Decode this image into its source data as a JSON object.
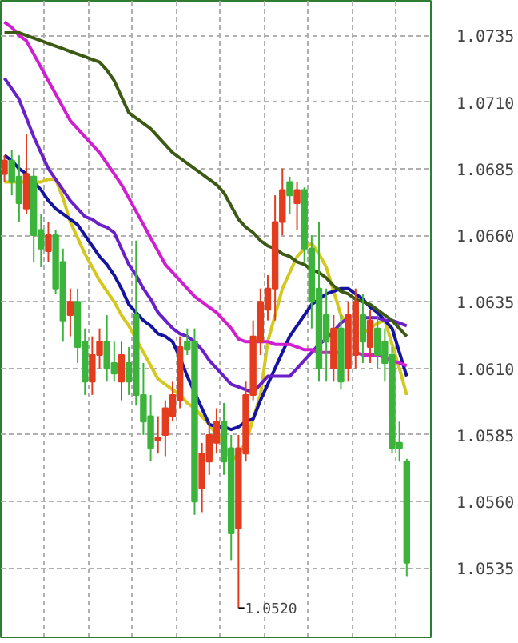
{
  "chart_data": {
    "type": "candlestick",
    "categories": [
      null,
      null,
      null,
      null,
      null,
      null,
      null,
      null,
      null,
      null,
      null,
      null,
      null,
      null,
      null,
      null,
      null,
      null,
      null,
      null,
      null,
      null,
      null,
      null,
      null,
      null,
      null,
      null,
      null,
      null,
      null,
      null,
      null,
      null,
      null,
      null,
      null,
      null,
      null,
      null,
      null,
      null,
      null,
      null,
      null,
      null,
      null,
      null,
      null,
      null,
      null,
      null,
      null,
      null,
      null,
      null
    ],
    "ohlc": [
      [
        1.0683,
        1.069,
        1.068,
        1.0688
      ],
      [
        1.0688,
        1.0692,
        1.0675,
        1.068
      ],
      [
        1.0682,
        1.069,
        1.0665,
        1.0672
      ],
      [
        1.067,
        1.0698,
        1.0668,
        1.0683
      ],
      [
        1.0682,
        1.0685,
        1.065,
        1.066
      ],
      [
        1.0662,
        1.0668,
        1.0648,
        1.0655
      ],
      [
        1.0654,
        1.0665,
        1.065,
        1.066
      ],
      [
        1.066,
        1.0662,
        1.0638,
        1.064
      ],
      [
        1.065,
        1.0655,
        1.062,
        1.0628
      ],
      [
        1.063,
        1.064,
        1.0622,
        1.0635
      ],
      [
        1.0635,
        1.064,
        1.0612,
        1.0618
      ],
      [
        1.062,
        1.0625,
        1.06,
        1.0605
      ],
      [
        1.0605,
        1.0622,
        1.06,
        1.0615
      ],
      [
        1.0615,
        1.0625,
        1.061,
        1.062
      ],
      [
        1.062,
        1.063,
        1.0605,
        1.061
      ],
      [
        1.0612,
        1.062,
        1.0605,
        1.0608
      ],
      [
        1.0605,
        1.062,
        1.0598,
        1.0615
      ],
      [
        1.0612,
        1.0618,
        1.06,
        1.0605
      ],
      [
        1.063,
        1.0658,
        1.0596,
        1.06
      ],
      [
        1.06,
        1.0612,
        1.0585,
        1.059
      ],
      [
        1.0592,
        1.06,
        1.0575,
        1.058
      ],
      [
        1.0583,
        1.0592,
        1.0578,
        1.0584
      ],
      [
        1.0585,
        1.0598,
        1.0577,
        1.0595
      ],
      [
        1.0592,
        1.0605,
        1.059,
        1.06
      ],
      [
        1.0598,
        1.0622,
        1.0595,
        1.0618
      ],
      [
        1.062,
        1.0625,
        1.0615,
        1.0617
      ],
      [
        1.062,
        1.0625,
        1.0555,
        1.056
      ],
      [
        1.0565,
        1.0582,
        1.0556,
        1.0578
      ],
      [
        1.0575,
        1.059,
        1.057,
        1.0585
      ],
      [
        1.0582,
        1.0595,
        1.0578,
        1.059
      ],
      [
        1.059,
        1.0597,
        1.057,
        1.0575
      ],
      [
        1.058,
        1.0585,
        1.0538,
        1.0548
      ],
      [
        1.055,
        1.0585,
        1.052,
        1.058
      ],
      [
        1.0578,
        1.0605,
        1.0575,
        1.06
      ],
      [
        1.06,
        1.0628,
        1.0598,
        1.0622
      ],
      [
        1.062,
        1.064,
        1.0615,
        1.0635
      ],
      [
        1.0632,
        1.0645,
        1.0628,
        1.064
      ],
      [
        1.064,
        1.0675,
        1.0628,
        1.0665
      ],
      [
        1.0665,
        1.0685,
        1.066,
        1.0677
      ],
      [
        1.068,
        1.0682,
        1.0668,
        1.0675
      ],
      [
        1.0672,
        1.068,
        1.0662,
        1.0677
      ],
      [
        1.0677,
        1.0678,
        1.065,
        1.0655
      ],
      [
        1.0655,
        1.066,
        1.0625,
        1.0635
      ],
      [
        1.064,
        1.0665,
        1.0605,
        1.061
      ],
      [
        1.063,
        1.064,
        1.0605,
        1.062
      ],
      [
        1.061,
        1.063,
        1.0605,
        1.0625
      ],
      [
        1.0625,
        1.063,
        1.0602,
        1.0605
      ],
      [
        1.061,
        1.0635,
        1.0605,
        1.063
      ],
      [
        1.0615,
        1.064,
        1.061,
        1.0635
      ],
      [
        1.063,
        1.0638,
        1.0612,
        1.062
      ],
      [
        1.0618,
        1.0632,
        1.0612,
        1.0628
      ],
      [
        1.0625,
        1.063,
        1.061,
        1.0615
      ],
      [
        1.062,
        1.0625,
        1.0605,
        1.0612
      ],
      [
        1.0615,
        1.0618,
        1.0578,
        1.058
      ],
      [
        1.0582,
        1.059,
        1.0575,
        1.058
      ],
      [
        1.0575,
        1.0576,
        1.0532,
        1.0537
      ]
    ],
    "series": [
      {
        "type": "line",
        "color": "#d4c81e",
        "values": [
          1.068,
          1.068,
          1.068,
          1.068,
          1.068,
          1.068,
          1.0681,
          1.0681,
          1.0674,
          1.0665,
          1.0659,
          1.0653,
          1.0648,
          1.0643,
          1.0639,
          1.0635,
          1.063,
          1.0626,
          1.0621,
          1.0616,
          1.0611,
          1.0606,
          1.0604,
          1.0602,
          1.06,
          1.0597,
          1.0595,
          1.0592,
          1.0589,
          1.0585,
          1.0582,
          1.0575,
          1.0578,
          1.0582,
          1.0591,
          1.06,
          1.062,
          1.063,
          1.064,
          1.0646,
          1.0652,
          1.0655,
          1.0657,
          1.0653,
          1.0648,
          1.0639,
          1.063,
          1.0626,
          null,
          1.0623,
          1.0625,
          1.0627,
          1.0628,
          1.0619,
          1.061,
          1.06
        ]
      },
      {
        "type": "line",
        "color": "#1414a0",
        "values": [
          1.069,
          1.0688,
          1.0685,
          1.0683,
          1.068,
          1.0677,
          1.0673,
          1.067,
          1.0668,
          1.0666,
          1.0664,
          1.066,
          1.0656,
          1.0652,
          1.0649,
          1.0645,
          1.064,
          1.0634,
          1.0631,
          1.0628,
          1.0626,
          1.0623,
          1.0622,
          1.062,
          1.0614,
          1.0607,
          1.0601,
          1.0595,
          1.0589,
          1.0588,
          1.0588,
          1.0587,
          1.0588,
          1.059,
          1.0591,
          1.0598,
          1.0604,
          1.061,
          1.0616,
          1.0622,
          1.0626,
          1.063,
          1.0634,
          1.0636,
          1.0638,
          1.0639,
          1.064,
          1.064,
          1.0638,
          1.0636,
          1.0633,
          1.0631,
          1.0628,
          1.0625,
          1.0616,
          1.0607
        ]
      },
      {
        "type": "line",
        "color": "#6a20c8",
        "values": [
          1.0719,
          1.0715,
          1.0711,
          1.0704,
          1.0697,
          1.0691,
          1.0685,
          1.0681,
          1.0677,
          1.0673,
          1.067,
          1.0667,
          1.0666,
          1.0664,
          1.0663,
          1.0661,
          1.0655,
          1.0649,
          1.0645,
          1.064,
          1.0636,
          1.0631,
          1.0628,
          1.0625,
          1.0623,
          1.0622,
          1.062,
          1.0617,
          1.0613,
          1.061,
          1.0607,
          1.0604,
          1.0603,
          1.0602,
          1.0601,
          1.0604,
          1.0607,
          1.0607,
          1.0607,
          1.0607,
          1.061,
          1.0613,
          1.0616,
          1.0619,
          1.0621,
          1.0624,
          1.0627,
          1.0629,
          null,
          1.0629,
          1.0629,
          1.0629,
          1.0628,
          1.0628,
          1.0627,
          1.0626
        ]
      },
      {
        "type": "line",
        "color": "#d21ed2",
        "values": [
          1.074,
          1.0738,
          1.0735,
          1.0733,
          1.0728,
          1.0723,
          1.0718,
          1.0713,
          1.0708,
          1.0703,
          1.07,
          1.0697,
          1.0694,
          1.0691,
          1.0687,
          1.0683,
          1.0679,
          1.0674,
          1.0669,
          1.0664,
          1.0659,
          1.0654,
          1.0649,
          1.0646,
          1.0643,
          1.064,
          1.0637,
          1.0635,
          1.0633,
          1.0631,
          1.0628,
          1.0625,
          1.0621,
          1.062,
          1.062,
          1.062,
          1.062,
          1.0619,
          1.0619,
          1.0619,
          1.0618,
          1.0617,
          1.0617,
          1.0616,
          1.0616,
          1.0616,
          1.0616,
          null,
          1.0616,
          1.0615,
          1.0615,
          1.0615,
          1.0614,
          1.0613,
          1.0612,
          1.0611
        ]
      },
      {
        "type": "line",
        "color": "#3c5a14",
        "values": [
          1.0736,
          1.0736,
          1.0736,
          1.0735,
          1.0734,
          1.0733,
          1.0732,
          1.0731,
          1.073,
          1.0729,
          1.0728,
          1.0727,
          1.0726,
          1.0725,
          1.0722,
          1.0718,
          1.0712,
          1.0706,
          1.0704,
          1.0702,
          1.07,
          1.0697,
          1.0694,
          1.0691,
          1.0689,
          1.0687,
          1.0685,
          1.0683,
          1.0681,
          1.0679,
          1.0676,
          1.0671,
          1.0666,
          1.0663,
          1.0661,
          1.0658,
          1.0656,
          1.0655,
          1.0653,
          1.0652,
          1.065,
          1.0649,
          1.0647,
          1.0646,
          1.0644,
          1.0641,
          1.0639,
          1.0638,
          1.0636,
          1.0635,
          1.0634,
          1.0632,
          1.063,
          1.0628,
          1.0625,
          1.0622
        ]
      }
    ],
    "ylim": [
      1.0509,
      1.0748
    ],
    "yticks": [
      {
        "value": 1.0535,
        "label": "1.0535"
      },
      {
        "value": 1.056,
        "label": "1.0560"
      },
      {
        "value": 1.0585,
        "label": "1.0585"
      },
      {
        "value": 1.061,
        "label": "1.0610"
      },
      {
        "value": 1.0635,
        "label": "1.0635"
      },
      {
        "value": 1.066,
        "label": "1.0660"
      },
      {
        "value": 1.0685,
        "label": "1.0685"
      },
      {
        "value": 1.071,
        "label": "1.0710"
      },
      {
        "value": 1.0735,
        "label": "1.0735"
      }
    ],
    "tick_labels": "y",
    "grid": true,
    "annotations": [
      "1.0520"
    ]
  }
}
